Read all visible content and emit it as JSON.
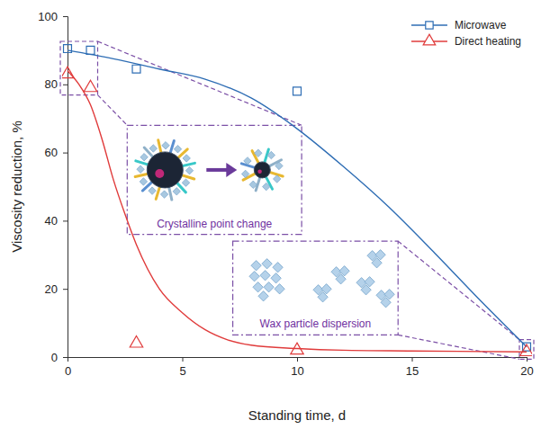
{
  "chart_data": {
    "type": "line",
    "x_label": "Standing time, d",
    "y_label": "Viscosity reduction, %",
    "xlim": [
      0,
      20
    ],
    "xticks": [
      0,
      5,
      10,
      15,
      20
    ],
    "ylim": [
      0,
      100
    ],
    "yticks": [
      0,
      20,
      40,
      60,
      80,
      100
    ],
    "legend": "upper right",
    "series": [
      {
        "name": "Microwave",
        "color": "#2e6db4",
        "marker": "square",
        "line_style": "solid",
        "x": [
          0,
          1,
          3,
          10,
          20
        ],
        "values": [
          90.5,
          90,
          84.5,
          78,
          3
        ],
        "fit_x": [
          0,
          2,
          4,
          6,
          8,
          10,
          12,
          14,
          16,
          18,
          20
        ],
        "fit": [
          90,
          87.5,
          84.5,
          81.5,
          76,
          67,
          56,
          44,
          30.5,
          16.5,
          3
        ]
      },
      {
        "name": "Direct heating",
        "color": "#e03b3b",
        "marker": "triangle",
        "line_style": "solid",
        "x": [
          0,
          1,
          3,
          10,
          20
        ],
        "values": [
          83,
          79,
          4,
          2,
          1.5
        ],
        "fit_x": [
          0,
          0.5,
          1,
          1.5,
          2,
          2.5,
          3,
          4,
          5,
          6,
          7,
          8,
          10,
          12,
          15,
          20
        ],
        "fit": [
          84,
          80,
          74,
          64,
          52,
          42,
          33,
          20,
          13,
          8,
          5,
          3.5,
          2.5,
          2,
          1.8,
          1.5
        ]
      }
    ],
    "annotations": [
      "Crystalline point change",
      "Wax particle dispersion"
    ]
  }
}
